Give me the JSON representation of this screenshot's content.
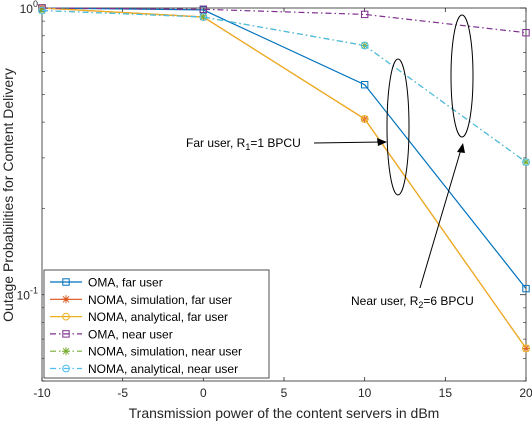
{
  "chart_data": {
    "type": "line",
    "xlabel": "Transmission power of the content servers in dBm",
    "ylabel": "Outage Probabilities for Content Delivery",
    "x": [
      -10,
      0,
      10,
      20
    ],
    "xlim": [
      -10,
      20
    ],
    "ylim": [
      0.05,
      1
    ],
    "yscale": "log",
    "xticks": [
      "-10",
      "-5",
      "0",
      "5",
      "10",
      "15",
      "20"
    ],
    "yticks": [
      {
        "base": "10",
        "exp": "-1",
        "value": 0.1
      },
      {
        "base": "10",
        "exp": "0",
        "value": 1
      }
    ],
    "grid": false,
    "legend_position": "bottom-left",
    "series": [
      {
        "name": "OMA, far user",
        "color": "#0072BD",
        "marker": "square",
        "linestyle": "solid",
        "values": [
          1.0,
          0.985,
          0.54,
          0.105
        ]
      },
      {
        "name": "NOMA, simulation, far user",
        "color": "#D95319",
        "marker": "asterisk",
        "linestyle": "solid",
        "values": [
          1.0,
          0.93,
          0.41,
          0.065
        ]
      },
      {
        "name": "NOMA, analytical, far user",
        "color": "#EDB120",
        "marker": "circle",
        "linestyle": "solid",
        "values": [
          1.0,
          0.93,
          0.41,
          0.065
        ]
      },
      {
        "name": "OMA, near user",
        "color": "#7E2F8E",
        "marker": "square",
        "linestyle": "dashdot",
        "values": [
          1.0,
          0.99,
          0.95,
          0.82
        ]
      },
      {
        "name": "NOMA, simulation, near user",
        "color": "#77AC30",
        "marker": "asterisk",
        "linestyle": "dashdot",
        "values": [
          0.98,
          0.93,
          0.74,
          0.29
        ]
      },
      {
        "name": "NOMA, analytical, near user",
        "color": "#4DBEEE",
        "marker": "circle",
        "linestyle": "dashdot",
        "values": [
          0.98,
          0.93,
          0.74,
          0.29
        ]
      }
    ],
    "annotations": [
      {
        "text_main": "Far user, R",
        "subscript": "1",
        "text_rest": "=1 BPCU"
      },
      {
        "text_main": "Near user, R",
        "subscript": "2",
        "text_rest": "=6 BPCU"
      }
    ]
  }
}
